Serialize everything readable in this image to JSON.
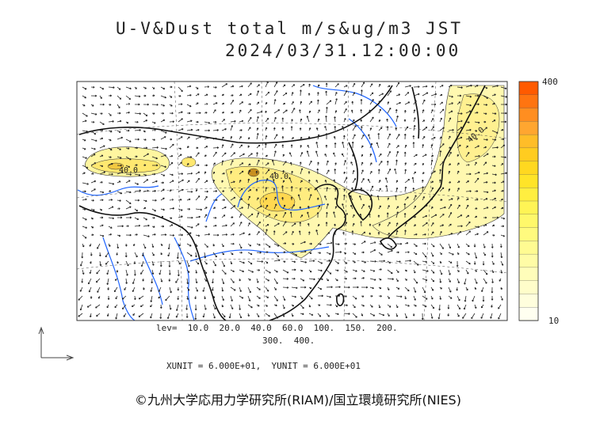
{
  "title": {
    "line1": "U-V&Dust total m/s&ug/m3 JST",
    "line2": "2024/03/31.12:00:00"
  },
  "colorbar": {
    "max_label": "400",
    "min_label": "10",
    "colors": [
      "#ff5a00",
      "#ff7410",
      "#ff8e20",
      "#ffa630",
      "#ffbd28",
      "#ffcc20",
      "#ffd820",
      "#ffe428",
      "#ffee40",
      "#fff455",
      "#fff86a",
      "#fffa7e",
      "#fffb92",
      "#fffca6",
      "#fffdba",
      "#fffdca",
      "#fffedd",
      "#fffff0"
    ]
  },
  "levels": {
    "line1": "lev=  10.0  20.0  40.0  60.0  100.  150.  200.",
    "line2": "300.  400."
  },
  "units_text": "XUNIT = 6.000E+01,  YUNIT = 6.000E+01",
  "credit": "©九州大学応用力学研究所(RIAM)/国立環境研究所(NIES)",
  "contour_labels": [
    "40.0",
    "40.0",
    "40.0"
  ],
  "colors": {
    "coastline": "#111111",
    "river": "#1e64ff",
    "dust_light": "#fffaaa",
    "dust_mid": "#ffe866",
    "dust_dark": "#e8b830",
    "arrow": "#222222"
  }
}
